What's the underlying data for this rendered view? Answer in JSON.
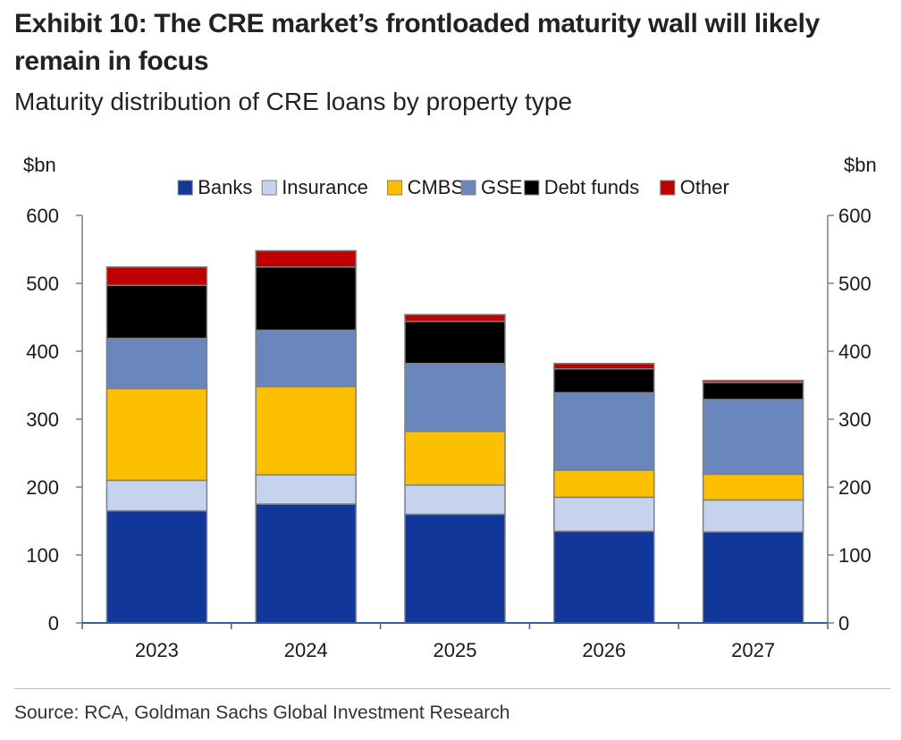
{
  "header": {
    "title": "Exhibit 10: The CRE market’s frontloaded maturity wall will likely remain in focus",
    "subtitle": "Maturity distribution of CRE loans by property type"
  },
  "footer": {
    "source": "Source: RCA, Goldman Sachs Global Investment Research"
  },
  "chart_data": {
    "type": "bar",
    "stacked": true,
    "categories": [
      "2023",
      "2024",
      "2025",
      "2026",
      "2027"
    ],
    "series": [
      {
        "name": "Banks",
        "color": "#12379a",
        "values": [
          165,
          175,
          160,
          135,
          134
        ]
      },
      {
        "name": "Insurance",
        "color": "#c5d3ef",
        "values": [
          45,
          43,
          43,
          50,
          47
        ]
      },
      {
        "name": "CMBS",
        "color": "#fcc000",
        "values": [
          135,
          130,
          79,
          40,
          38
        ]
      },
      {
        "name": "GSE",
        "color": "#6a87bd",
        "values": [
          74,
          83,
          100,
          114,
          110
        ]
      },
      {
        "name": "Debt funds",
        "color": "#000000",
        "values": [
          78,
          93,
          62,
          35,
          25
        ]
      },
      {
        "name": "Other",
        "color": "#c00000",
        "values": [
          27,
          24,
          10,
          8,
          3
        ]
      }
    ],
    "ylabel_left": "$bn",
    "ylabel_right": "$bn",
    "ylim": [
      0,
      600
    ],
    "yticks": [
      0,
      100,
      200,
      300,
      400,
      500,
      600
    ],
    "legend_position": "top",
    "grid": false
  }
}
